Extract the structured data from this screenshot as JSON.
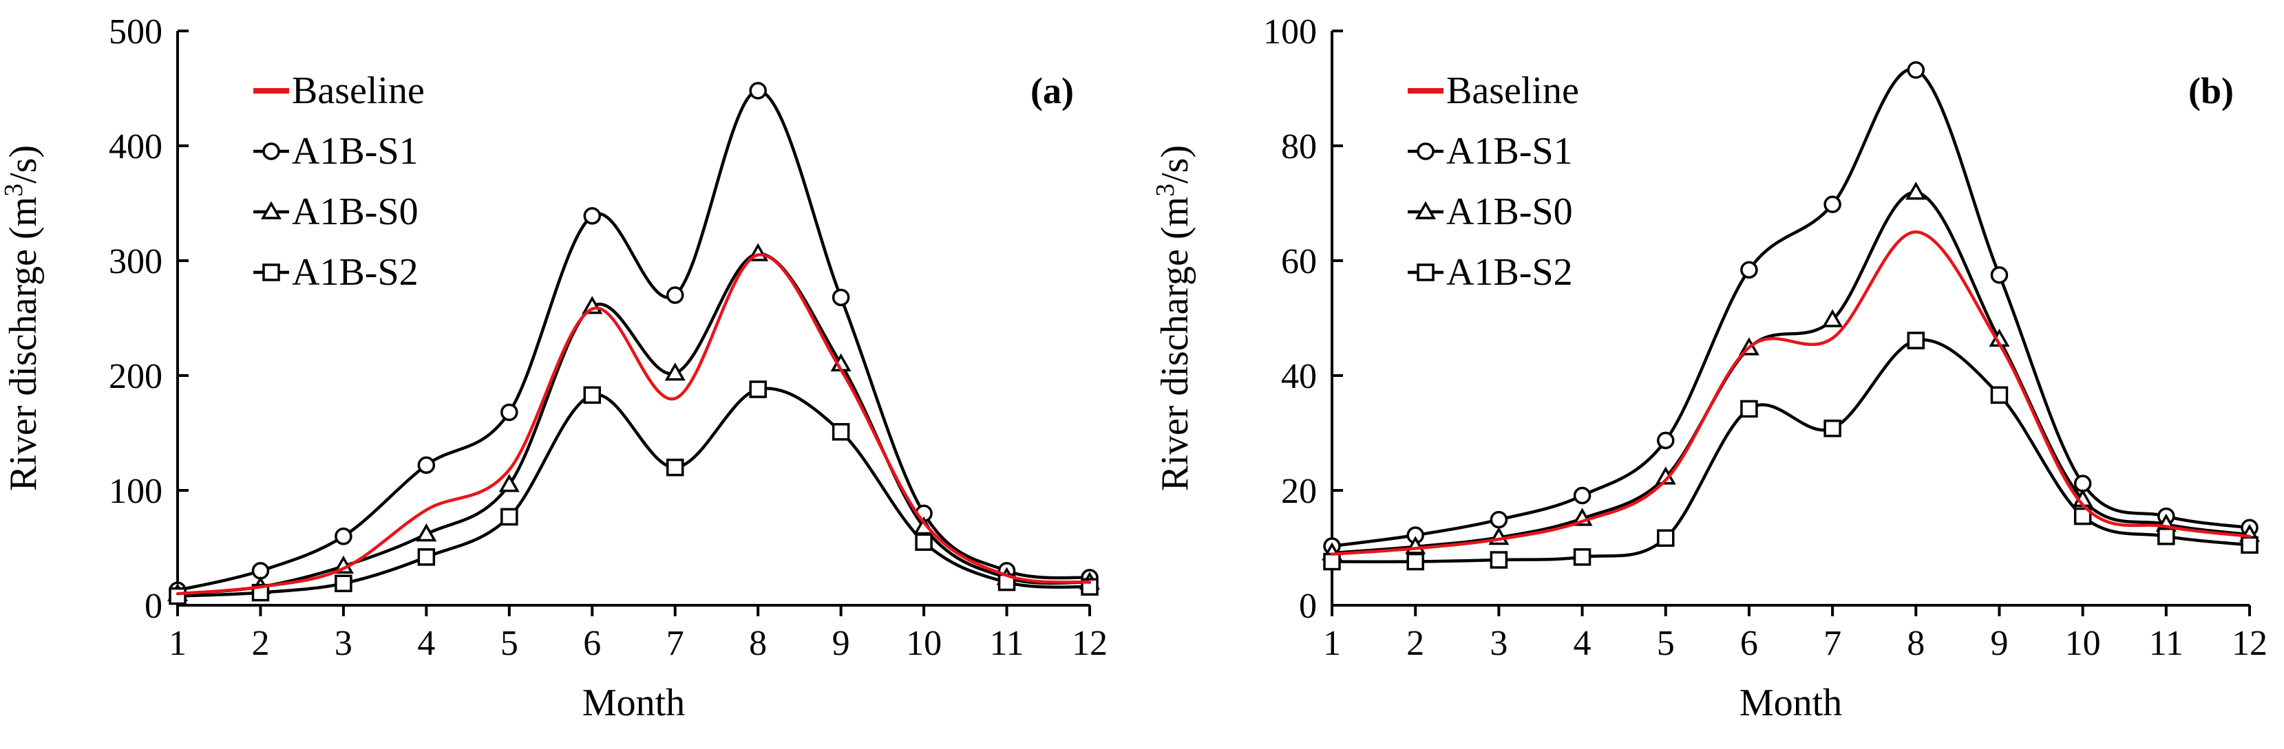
{
  "chart_data": [
    {
      "type": "line",
      "panel_label": "(a)",
      "x": [
        1,
        2,
        3,
        4,
        5,
        6,
        7,
        8,
        9,
        10,
        11,
        12
      ],
      "xlabel": "Month",
      "ylabel": "River discharge (m",
      "ylabel_sup": "3",
      "ylabel_end": "/s)",
      "ylim": [
        0,
        500
      ],
      "yticks": [
        0,
        100,
        200,
        300,
        400,
        500
      ],
      "legend_position": "top-left",
      "series": [
        {
          "name": "Baseline",
          "color": "#e8141b",
          "marker": "none",
          "values": [
            10,
            16,
            32,
            83,
            118,
            258,
            180,
            305,
            205,
            72,
            26,
            20
          ]
        },
        {
          "name": "A1B-S1",
          "color": "#000000",
          "marker": "circle",
          "values": [
            13,
            30,
            60,
            122,
            168,
            339,
            270,
            448,
            268,
            80,
            30,
            24
          ]
        },
        {
          "name": "A1B-S0",
          "color": "#000000",
          "marker": "triangle",
          "values": [
            10,
            16,
            34,
            62,
            105,
            260,
            202,
            306,
            210,
            68,
            24,
            20
          ]
        },
        {
          "name": "A1B-S2",
          "color": "#000000",
          "marker": "square",
          "values": [
            8,
            11,
            19,
            42,
            77,
            183,
            120,
            188,
            151,
            55,
            20,
            16
          ]
        }
      ]
    },
    {
      "type": "line",
      "panel_label": "(b)",
      "x": [
        1,
        2,
        3,
        4,
        5,
        6,
        7,
        8,
        9,
        10,
        11,
        12
      ],
      "xlabel": "Month",
      "ylabel": "River discharge (m",
      "ylabel_sup": "3",
      "ylabel_end": "/s)",
      "ylim": [
        0,
        100
      ],
      "yticks": [
        0,
        20,
        40,
        60,
        80,
        100
      ],
      "legend_position": "top-left",
      "series": [
        {
          "name": "Baseline",
          "color": "#e8141b",
          "marker": "none",
          "values": [
            8.9,
            9.9,
            11.5,
            14.6,
            21.8,
            44.9,
            46.5,
            65,
            45.5,
            17.5,
            13.7,
            12
          ]
        },
        {
          "name": "A1B-S1",
          "color": "#000000",
          "marker": "circle",
          "values": [
            10.3,
            12.2,
            14.9,
            19.1,
            28.7,
            58.4,
            69.8,
            93.2,
            57.5,
            21.2,
            15.5,
            13.5
          ]
        },
        {
          "name": "A1B-S0",
          "color": "#000000",
          "marker": "triangle",
          "values": [
            9.1,
            10.2,
            11.8,
            15.1,
            22.3,
            44.8,
            49.7,
            71.9,
            46.3,
            18.4,
            14.1,
            12.3
          ]
        },
        {
          "name": "A1B-S2",
          "color": "#000000",
          "marker": "square",
          "values": [
            7.6,
            7.6,
            7.9,
            8.4,
            11.7,
            34.2,
            30.8,
            46.1,
            36.6,
            15.5,
            12,
            10.5
          ]
        }
      ]
    }
  ]
}
